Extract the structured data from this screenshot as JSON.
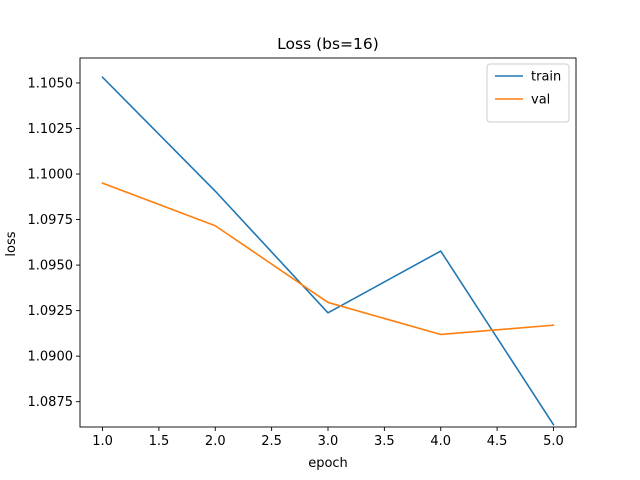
{
  "chart_data": {
    "type": "line",
    "title": "Loss (bs=16)",
    "xlabel": "epoch",
    "ylabel": "loss",
    "x": [
      1.0,
      2.0,
      3.0,
      4.0,
      5.0
    ],
    "xlim": [
      0.8,
      5.2
    ],
    "ylim": [
      1.08611,
      1.10637
    ],
    "xticks": [
      1.0,
      1.5,
      2.0,
      2.5,
      3.0,
      3.5,
      4.0,
      4.5,
      5.0
    ],
    "xtick_labels": [
      "1.0",
      "1.5",
      "2.0",
      "2.5",
      "3.0",
      "3.5",
      "4.0",
      "4.5",
      "5.0"
    ],
    "yticks": [
      1.0875,
      1.09,
      1.0925,
      1.095,
      1.0975,
      1.1,
      1.1025,
      1.105
    ],
    "ytick_labels": [
      "1.0875",
      "1.0900",
      "1.0925",
      "1.0950",
      "1.0975",
      "1.1000",
      "1.1025",
      "1.1050"
    ],
    "grid": false,
    "legend_position": "top-right",
    "series": [
      {
        "name": "train",
        "color": "#1f77b4",
        "values": [
          1.10531,
          1.09906,
          1.09238,
          1.09577,
          1.08624
        ]
      },
      {
        "name": "val",
        "color": "#ff7f0e",
        "values": [
          1.0995,
          1.09716,
          1.09295,
          1.09119,
          1.0917
        ]
      }
    ]
  }
}
